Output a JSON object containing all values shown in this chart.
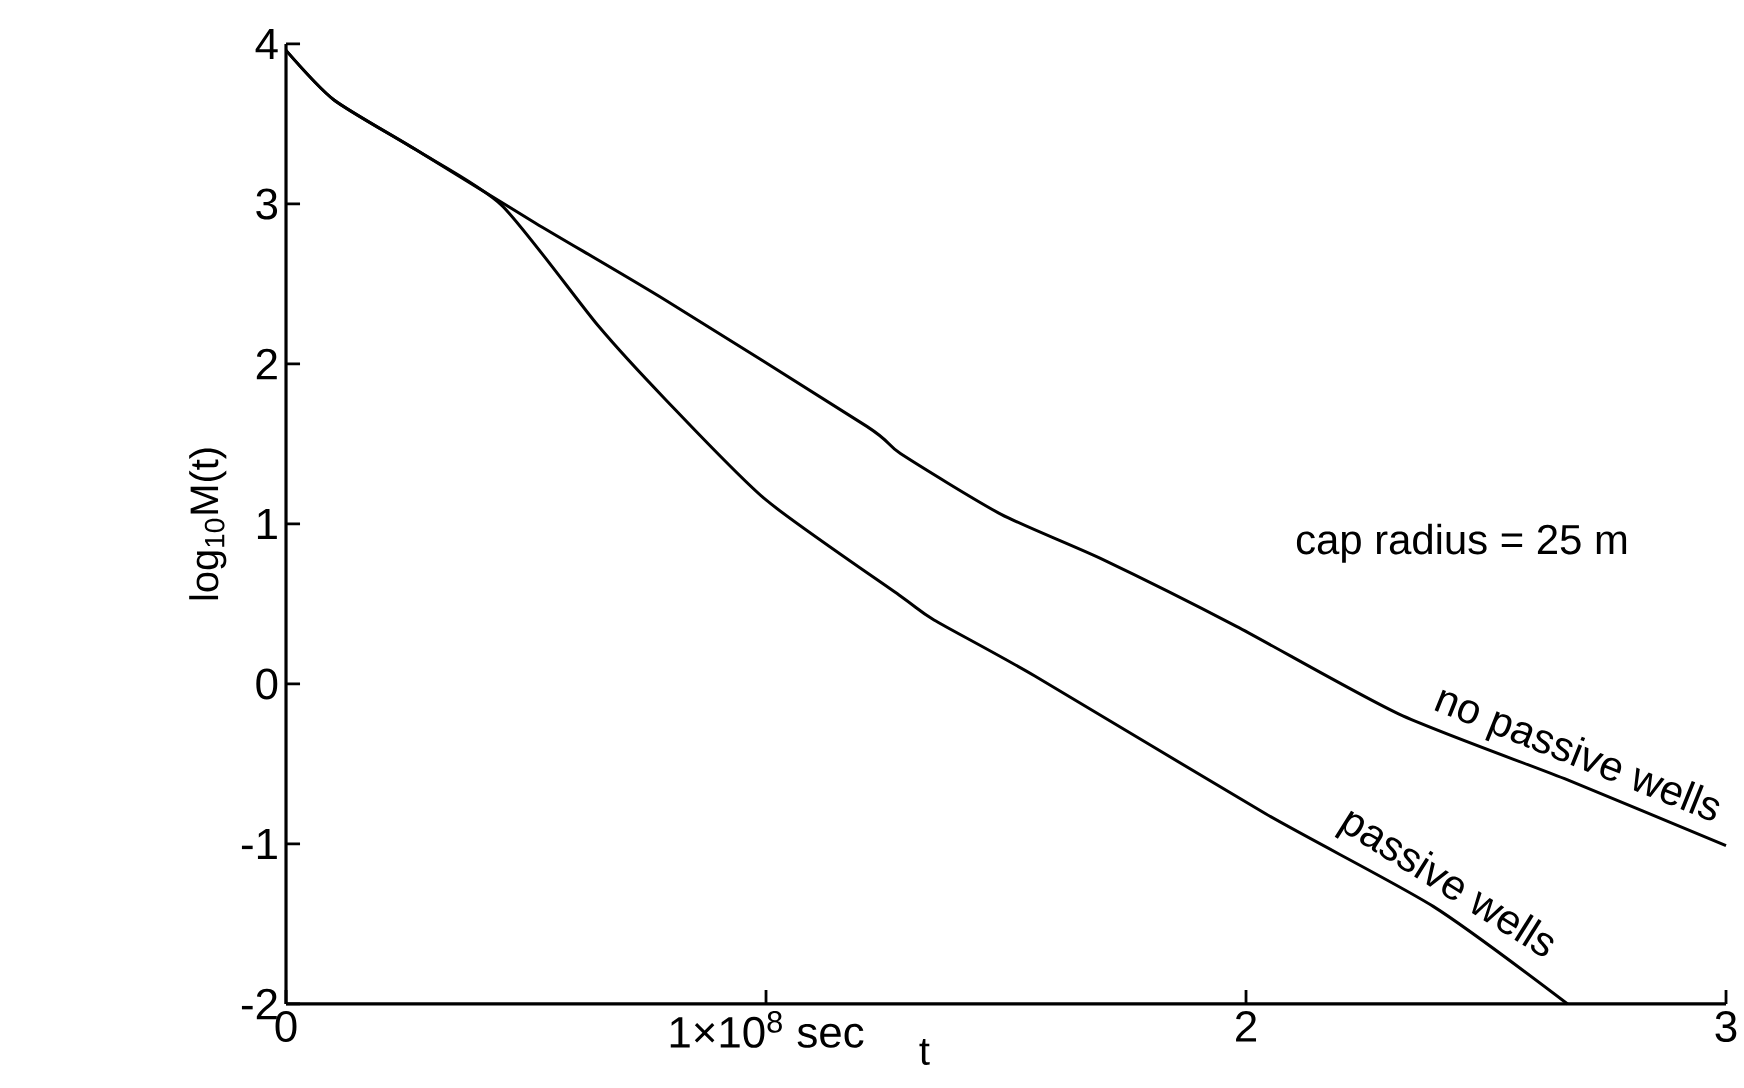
{
  "chart_data": {
    "type": "line",
    "xlabel": "t",
    "ylabel": "log$_{10}$M(t)",
    "xlim": [
      0,
      3
    ],
    "ylim": [
      -2,
      4
    ],
    "xticks": [
      0,
      {
        "value": 1,
        "label": "1×10$^{8}$ sec"
      },
      2,
      3
    ],
    "yticks": [
      -2,
      -1,
      0,
      1,
      2,
      3,
      4
    ],
    "annotations": [
      "cap radius = 25 m"
    ],
    "marker": "none",
    "line_style": "solid",
    "series": [
      {
        "name": "no passive wells",
        "color": "#000000",
        "x": [
          0,
          0.1,
          0.27,
          0.52,
          0.79,
          1.21,
          1.28,
          1.49,
          1.7,
          1.98,
          2.32,
          2.67,
          3.0
        ],
        "values": [
          3.96,
          3.65,
          3.34,
          2.88,
          2.4,
          1.61,
          1.44,
          1.06,
          0.78,
          0.36,
          -0.19,
          -0.6,
          -1.01
        ]
      },
      {
        "name": "passive wells",
        "color": "#000000",
        "x": [
          0,
          0.1,
          0.27,
          0.45,
          0.65,
          0.79,
          1.0,
          1.28,
          1.35,
          1.56,
          2.04,
          2.39,
          2.67
        ],
        "values": [
          3.96,
          3.65,
          3.34,
          2.99,
          2.24,
          1.78,
          1.15,
          0.55,
          0.4,
          0.05,
          -0.81,
          -1.39,
          -2.0
        ]
      }
    ]
  }
}
